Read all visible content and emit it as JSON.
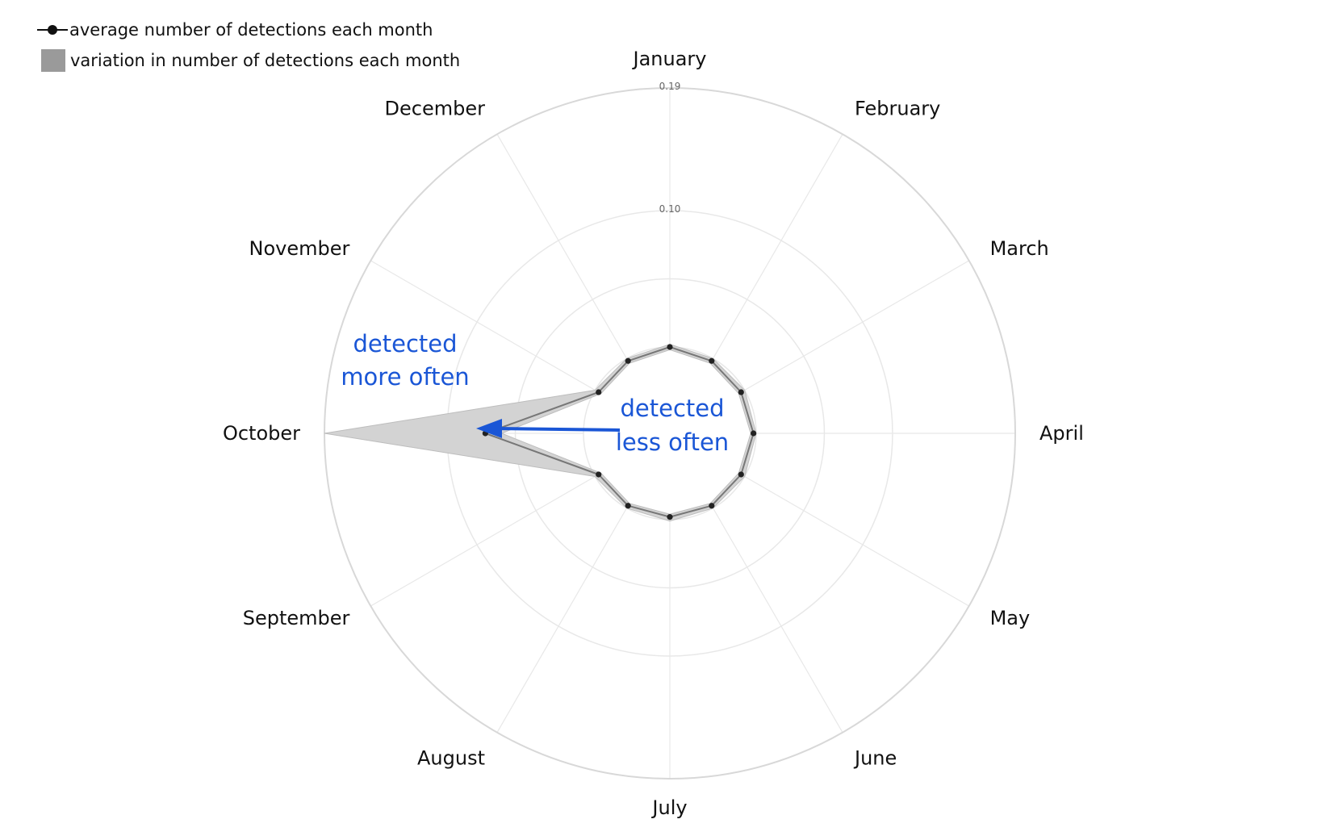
{
  "legend": {
    "line_label": "average number of detections each month",
    "band_label": "variation in number of detections each month"
  },
  "chart_data": {
    "type": "radar",
    "categories": [
      "January",
      "February",
      "March",
      "April",
      "May",
      "June",
      "July",
      "August",
      "September",
      "October",
      "November",
      "December"
    ],
    "series": [
      {
        "name": "average number of detections each month",
        "values": [
          0.0,
          -0.002,
          -0.003,
          -0.002,
          -0.003,
          -0.002,
          -0.002,
          -0.002,
          -0.003,
          0.072,
          -0.003,
          -0.002
        ]
      }
    ],
    "band": {
      "name": "variation in number of detections each month",
      "low": [
        -0.002,
        -0.004,
        -0.005,
        -0.004,
        -0.005,
        -0.004,
        -0.004,
        -0.004,
        -0.005,
        0.06,
        -0.005,
        -0.004
      ],
      "high": [
        0.002,
        0.0,
        0.0,
        0.0,
        0.0,
        0.0,
        0.001,
        0.0,
        0.0,
        0.19,
        0.0,
        0.0
      ]
    },
    "radial_range": [
      0,
      0.19
    ],
    "radial_ticks": [
      0.1,
      0.19
    ],
    "radial_tick_labels": [
      "0.10",
      "0.19"
    ],
    "grid": true,
    "legend_placement": "top-left",
    "colors": {
      "line": "#333333",
      "points": "#222222",
      "band": "#d3d3d3",
      "grid": "#e8e8e8",
      "outer_ring": "#d8d8d8",
      "annotation": "#1a56d6"
    },
    "annotations": {
      "outer_line1": "detected",
      "outer_line2": "more often",
      "inner_line1": "detected",
      "inner_line2": "less often"
    }
  }
}
